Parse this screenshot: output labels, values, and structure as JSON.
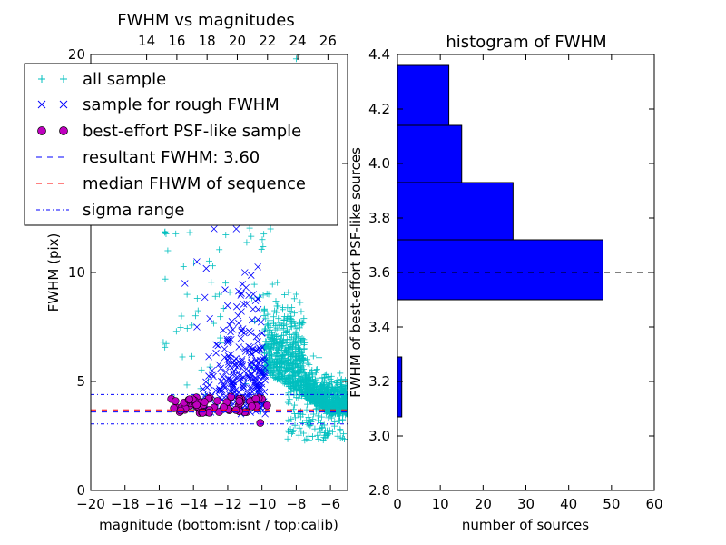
{
  "chart_data": [
    {
      "type": "scatter",
      "title": "FWHM vs magnitudes",
      "xlabel": "magnitude (bottom:isnt / top:calib)",
      "ylabel": "FWHM (pix)",
      "xlim": [
        -20,
        -5
      ],
      "ylim": [
        0,
        20
      ],
      "x_ticks": [
        "−20",
        "−18",
        "−16",
        "−14",
        "−12",
        "−10",
        "−8",
        "−6"
      ],
      "x_tick_values": [
        -20,
        -18,
        -16,
        -14,
        -12,
        -10,
        -8,
        -6
      ],
      "y_ticks": [
        "0",
        "5",
        "10",
        "15",
        "20"
      ],
      "y_tick_values": [
        0,
        5,
        10,
        15,
        20
      ],
      "top_x_ticks": [
        "14",
        "16",
        "18",
        "20",
        "22",
        "24",
        "26"
      ],
      "top_x_tick_values": [
        14,
        16,
        18,
        20,
        22,
        24,
        26
      ],
      "top_xlim": [
        10.3,
        27.3
      ],
      "legend_position": "upper-left",
      "colors": {
        "all_sample": "#00bfbf",
        "rough": "#0000ff",
        "best": "#bf00bf",
        "resultant": "#0000ff",
        "median": "#ff0000",
        "sigma": "#0000ff"
      },
      "series": [
        {
          "name": "all sample",
          "marker": "+",
          "description": "dense cloud of several thousand points",
          "sample_points": [
            [
              -8.0,
              19.8
            ],
            [
              -7.8,
              20.1
            ],
            [
              -8.5,
              19.4
            ],
            [
              -9.5,
              12.0
            ],
            [
              -10.5,
              13.0
            ],
            [
              -12.5,
              9.0
            ],
            [
              -15.5,
              11.0
            ],
            [
              -14.7,
              8.0
            ],
            [
              -15.0,
              7.3
            ],
            [
              -7.5,
              2.3
            ],
            [
              -5.3,
              2.4
            ],
            [
              -8.0,
              9.0
            ],
            [
              -8.5,
              6.0
            ],
            [
              -6.0,
              4.0
            ]
          ]
        },
        {
          "name": "sample for rough FWHM",
          "marker": "x",
          "sample_points": [
            [
              -14.5,
              9.5
            ],
            [
              -13.8,
              10.5
            ],
            [
              -12.8,
              12.0
            ],
            [
              -11.5,
              12.0
            ],
            [
              -11.0,
              10.0
            ],
            [
              -10.5,
              9.0
            ],
            [
              -11.0,
              6.5
            ],
            [
              -10.8,
              5.5
            ],
            [
              -10.2,
              4.8
            ],
            [
              -12.0,
              6.0
            ],
            [
              -13.8,
              7.5
            ]
          ]
        },
        {
          "name": "best-effort PSF-like sample",
          "marker": "o",
          "sample_points": [
            [
              -15.3,
              4.2
            ],
            [
              -15.0,
              3.8
            ],
            [
              -14.8,
              3.6
            ],
            [
              -14.5,
              3.7
            ],
            [
              -14.2,
              3.9
            ],
            [
              -14.0,
              4.0
            ],
            [
              -13.6,
              3.7
            ],
            [
              -13.2,
              3.6
            ],
            [
              -12.8,
              3.8
            ],
            [
              -12.5,
              3.6
            ],
            [
              -12.1,
              3.9
            ],
            [
              -11.8,
              4.3
            ],
            [
              -11.5,
              3.7
            ],
            [
              -11.2,
              4.2
            ],
            [
              -10.9,
              3.6
            ],
            [
              -10.6,
              4.1
            ],
            [
              -10.3,
              3.8
            ],
            [
              -10.1,
              3.1
            ],
            [
              -10.0,
              4.2
            ],
            [
              -9.7,
              3.9
            ]
          ]
        }
      ],
      "hlines": [
        {
          "name": "resultant FWHM: 3.60",
          "y": 3.6,
          "style": "dashed",
          "color": "#0000ff"
        },
        {
          "name": "median FHWM of sequence",
          "y": 3.7,
          "style": "dashed",
          "color": "#ff0000"
        },
        {
          "name": "sigma range",
          "y": 4.4,
          "style": "dashdot",
          "color": "#0000ff"
        },
        {
          "name": "sigma range",
          "y": 3.05,
          "style": "dashdot",
          "color": "#0000ff"
        }
      ]
    },
    {
      "type": "bar",
      "orientation": "horizontal",
      "title": "histogram of FWHM",
      "xlabel": "number of sources",
      "ylabel": "FWHM of best-effort PSF-like sources",
      "xlim": [
        0,
        60
      ],
      "ylim": [
        2.8,
        4.4
      ],
      "x_ticks": [
        "0",
        "10",
        "20",
        "30",
        "40",
        "50",
        "60"
      ],
      "x_tick_values": [
        0,
        10,
        20,
        30,
        40,
        50,
        60
      ],
      "y_ticks": [
        "2.8",
        "3.0",
        "3.2",
        "3.4",
        "3.6",
        "3.8",
        "4.0",
        "4.2",
        "4.4"
      ],
      "y_tick_values": [
        2.8,
        3.0,
        3.2,
        3.4,
        3.6,
        3.8,
        4.0,
        4.2,
        4.4
      ],
      "color": "#0000ff",
      "bins": [
        {
          "from": 3.07,
          "to": 3.29,
          "count": 1
        },
        {
          "from": 3.5,
          "to": 3.72,
          "count": 48
        },
        {
          "from": 3.72,
          "to": 3.93,
          "count": 27
        },
        {
          "from": 3.93,
          "to": 4.14,
          "count": 15
        },
        {
          "from": 4.14,
          "to": 4.36,
          "count": 12
        }
      ],
      "hline": {
        "y": 3.6,
        "style": "dashed",
        "color": "#000000"
      }
    }
  ]
}
